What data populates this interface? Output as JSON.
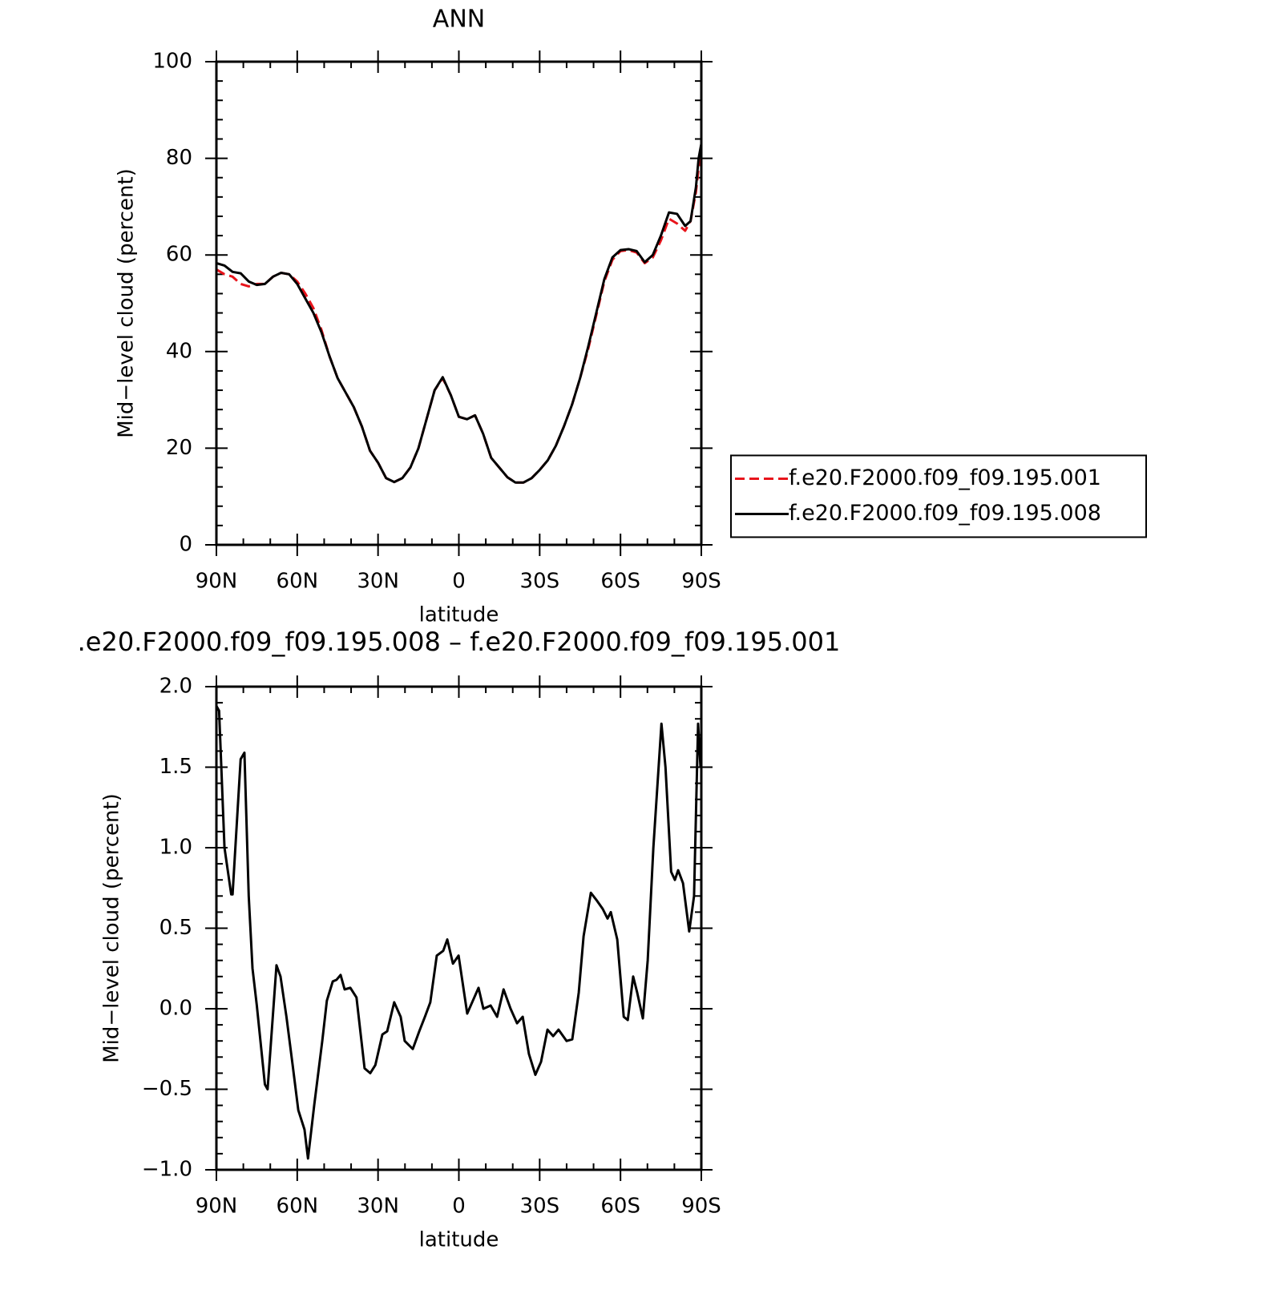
{
  "chart_data": [
    {
      "type": "line",
      "title": "ANN",
      "xlabel": "latitude",
      "ylabel": "Mid−level cloud (percent)",
      "xlim": [
        90,
        -90
      ],
      "xticks": [
        {
          "value": 90,
          "label": "90N"
        },
        {
          "value": 60,
          "label": "60N"
        },
        {
          "value": 30,
          "label": "30N"
        },
        0,
        {
          "value": -30,
          "label": "30S"
        },
        {
          "value": -60,
          "label": "60S"
        },
        {
          "value": -90,
          "label": "90S"
        }
      ],
      "ylim": [
        0,
        100
      ],
      "yticks": [
        0,
        20,
        40,
        60,
        80,
        100
      ],
      "legend": "right",
      "x": [
        90,
        87,
        84,
        81,
        78,
        75,
        72,
        69,
        66,
        63,
        60,
        57,
        54,
        51,
        48,
        45,
        42,
        39,
        36,
        33,
        30,
        27,
        24,
        21,
        18,
        15,
        12,
        9,
        6,
        3,
        0,
        -3,
        -6,
        -9,
        -12,
        -15,
        -18,
        -21,
        -24,
        -27,
        -30,
        -33,
        -36,
        -39,
        -42,
        -45,
        -48,
        -51,
        -54,
        -57,
        -60,
        -63,
        -66,
        -69,
        -72,
        -75,
        -78,
        -81,
        -84,
        -86,
        -88,
        -89,
        -90
      ],
      "series": [
        {
          "name": "f.e20.F2000.f09_f09.195.001",
          "color": "#e8141b",
          "dash": true,
          "values": [
            57,
            56,
            55.5,
            54,
            53.5,
            54,
            54,
            55.5,
            56.3,
            56,
            54.5,
            52,
            49,
            44.5,
            39,
            34.5,
            31.5,
            28.5,
            24.5,
            19.5,
            17,
            13.8,
            13,
            13.8,
            16,
            20,
            26,
            32,
            34.5,
            31,
            26.5,
            26,
            26.8,
            23,
            18,
            16,
            14,
            12.9,
            12.9,
            13.8,
            15.5,
            17.5,
            20.5,
            24.5,
            29,
            34.5,
            40.5,
            47.5,
            54.5,
            59,
            60.8,
            61,
            60.5,
            58.3,
            59.5,
            63,
            67.5,
            66.5,
            65,
            67,
            73,
            78,
            80
          ]
        },
        {
          "name": "f.e20.F2000.f09_f09.195.008",
          "color": "#000000",
          "dash": false,
          "values": [
            58.3,
            57.8,
            56.5,
            56.2,
            54.5,
            53.8,
            54,
            55.5,
            56.3,
            56,
            54,
            51,
            48,
            44,
            39,
            34.5,
            31.5,
            28.5,
            24.5,
            19.5,
            17,
            13.8,
            13,
            13.8,
            16,
            20,
            26,
            32,
            34.7,
            31,
            26.5,
            26,
            26.8,
            23,
            18,
            16,
            14,
            12.9,
            12.9,
            13.8,
            15.5,
            17.5,
            20.5,
            24.5,
            29,
            34.5,
            41,
            48,
            55,
            59.5,
            61,
            61.2,
            60.8,
            58.5,
            60,
            64,
            68.8,
            68.5,
            66,
            67,
            74,
            80,
            83
          ]
        }
      ]
    },
    {
      "type": "line",
      "title": ".e20.F2000.f09_f09.195.008 – f.e20.F2000.f09_f09.195.001",
      "xlabel": "latitude",
      "ylabel": "Mid−level cloud (percent)",
      "xlim": [
        90,
        -90
      ],
      "xticks": [
        {
          "value": 90,
          "label": "90N"
        },
        {
          "value": 60,
          "label": "60N"
        },
        {
          "value": 30,
          "label": "30N"
        },
        0,
        {
          "value": -30,
          "label": "30S"
        },
        {
          "value": -60,
          "label": "60S"
        },
        {
          "value": -90,
          "label": "90S"
        }
      ],
      "ylim": [
        -1,
        2
      ],
      "yticks": [
        {
          "value": -1,
          "label": "−1.0"
        },
        {
          "value": -0.5,
          "label": "−0.5"
        },
        {
          "value": 0,
          "label": "0.0"
        },
        0.5,
        {
          "value": 1,
          "label": "1.0"
        },
        1.5,
        {
          "value": 2,
          "label": "2.0"
        }
      ],
      "x": [
        90,
        89,
        87,
        84.5,
        84,
        81,
        79.6,
        78,
        76.6,
        75,
        72,
        71,
        67.7,
        66.2,
        64,
        61.7,
        59.6,
        57.3,
        56,
        53.7,
        50.7,
        49,
        46.8,
        45.4,
        43.9,
        42.4,
        40.3,
        38,
        35,
        32.9,
        31,
        28.4,
        26.6,
        24,
        21.6,
        20.1,
        17.1,
        14.7,
        12.6,
        10.6,
        8.2,
        5.8,
        4.3,
        2.2,
        0.1,
        -3.1,
        -5.2,
        -7.3,
        -9.1,
        -11.8,
        -14.2,
        -16.6,
        -19.2,
        -21.6,
        -23.7,
        -26,
        -28.4,
        -30.5,
        -32.9,
        -35,
        -37,
        -40,
        -42.1,
        -44.5,
        -46.3,
        -49,
        -51.3,
        -53.4,
        -55.2,
        -56.4,
        -58.8,
        -61.2,
        -62.7,
        -64.7,
        -66.2,
        -68.3,
        -70.1,
        -72.2,
        -75.2,
        -76.7,
        -78.8,
        -80.2,
        -81.4,
        -83.2,
        -85.5,
        -87.3,
        -88.8,
        -89.7
      ],
      "series": [
        {
          "color": "#000000",
          "dash": false,
          "values": [
            1.88,
            1.85,
            1.0,
            0.71,
            0.71,
            1.55,
            1.59,
            0.7,
            0.25,
            0.02,
            -0.47,
            -0.5,
            0.27,
            0.2,
            -0.05,
            -0.35,
            -0.63,
            -0.75,
            -0.93,
            -0.6,
            -0.2,
            0.05,
            0.17,
            0.18,
            0.21,
            0.12,
            0.13,
            0.07,
            -0.37,
            -0.4,
            -0.35,
            -0.16,
            -0.14,
            0.04,
            -0.05,
            -0.2,
            -0.25,
            -0.14,
            -0.05,
            0.04,
            0.33,
            0.36,
            0.43,
            0.28,
            0.33,
            -0.03,
            0.05,
            0.13,
            0.0,
            0.02,
            -0.05,
            0.12,
            0.0,
            -0.09,
            -0.05,
            -0.28,
            -0.41,
            -0.33,
            -0.13,
            -0.17,
            -0.13,
            -0.2,
            -0.19,
            0.1,
            0.45,
            0.72,
            0.67,
            0.62,
            0.56,
            0.6,
            0.43,
            -0.05,
            -0.07,
            0.2,
            0.1,
            -0.06,
            0.3,
            1.0,
            1.77,
            1.5,
            0.85,
            0.8,
            0.86,
            0.78,
            0.48,
            0.7,
            1.77,
            1.5
          ]
        }
      ]
    }
  ]
}
